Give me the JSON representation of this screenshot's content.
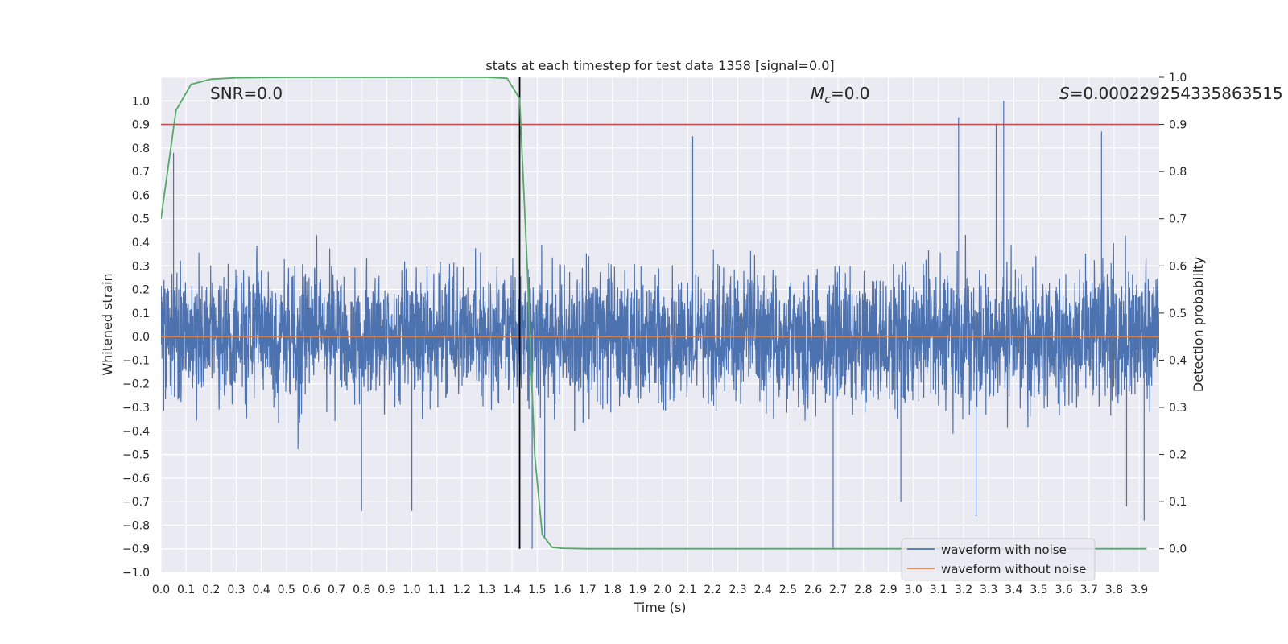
{
  "chart_data": {
    "type": "line",
    "title": "stats at each timestep for test data 1358 [signal=0.0]",
    "xlabel": "Time (s)",
    "ylabel": "Whitened strain",
    "y2label": "Detection probability",
    "xlim": [
      0.0,
      3.98
    ],
    "ylim": [
      -1.0,
      1.1
    ],
    "y2lim": [
      -0.05,
      1.0
    ],
    "x_ticks": [
      "0.0",
      "0.1",
      "0.2",
      "0.3",
      "0.4",
      "0.5",
      "0.6",
      "0.7",
      "0.8",
      "0.9",
      "1.0",
      "1.1",
      "1.2",
      "1.3",
      "1.4",
      "1.5",
      "1.6",
      "1.7",
      "1.8",
      "1.9",
      "2.0",
      "2.1",
      "2.2",
      "2.3",
      "2.4",
      "2.5",
      "2.6",
      "2.7",
      "2.8",
      "2.9",
      "3.0",
      "3.1",
      "3.2",
      "3.3",
      "3.4",
      "3.5",
      "3.6",
      "3.7",
      "3.8",
      "3.9"
    ],
    "y_ticks": [
      "1.0",
      "0.9",
      "0.8",
      "0.7",
      "0.6",
      "0.5",
      "0.4",
      "0.3",
      "0.2",
      "0.1",
      "0.0",
      "−0.1",
      "−0.2",
      "−0.3",
      "−0.4",
      "−0.5",
      "−0.6",
      "−0.7",
      "−0.8",
      "−0.9",
      "−1.0"
    ],
    "y2_ticks": [
      "1.0",
      "0.9",
      "0.8",
      "0.7",
      "0.6",
      "0.5",
      "0.4",
      "0.3",
      "0.2",
      "0.1",
      "0.0"
    ],
    "annotations": {
      "snr": "SNR=0.0",
      "mc_symbol": "M",
      "mc_sub": "c",
      "mc_value": "=0.0",
      "s_symbol": "S",
      "s_value": "=0.000229254335863515"
    },
    "threshold": 0.9,
    "detection_time": 1.43,
    "noise_seed": 1358,
    "noise_samples": 4000,
    "noise_spikes": [
      [
        0.05,
        0.78
      ],
      [
        2.12,
        0.85
      ],
      [
        3.18,
        0.93
      ],
      [
        3.33,
        0.9
      ],
      [
        3.36,
        1.0
      ],
      [
        3.75,
        0.87
      ],
      [
        2.68,
        -0.9
      ],
      [
        1.48,
        -0.9
      ],
      [
        1.53,
        -0.85
      ],
      [
        3.92,
        -0.78
      ],
      [
        0.8,
        -0.74
      ],
      [
        1.0,
        -0.74
      ],
      [
        3.25,
        -0.76
      ],
      [
        2.95,
        -0.7
      ],
      [
        3.85,
        -0.72
      ]
    ],
    "detection_probability": {
      "x": [
        0.0,
        0.06,
        0.12,
        0.2,
        0.3,
        0.5,
        1.0,
        1.3,
        1.38,
        1.43,
        1.46,
        1.49,
        1.52,
        1.56,
        1.6,
        1.7,
        2.0,
        3.0,
        3.93
      ],
      "y": [
        0.7,
        0.93,
        0.985,
        0.996,
        0.999,
        1.0,
        1.0,
        1.0,
        0.998,
        0.955,
        0.6,
        0.2,
        0.03,
        0.003,
        0.001,
        0.0,
        0.0,
        0.0,
        0.0
      ]
    },
    "series": [
      {
        "name": "waveform with noise",
        "color": "#4c72b0"
      },
      {
        "name": "waveform without noise",
        "color": "#dd8452"
      },
      {
        "name": "detection probability",
        "color": "#55a868"
      },
      {
        "name": "threshold",
        "color": "#c44e52"
      },
      {
        "name": "detection time",
        "color": "#000000"
      }
    ],
    "legend": {
      "placement": "lower-right",
      "entries": [
        "waveform with noise",
        "waveform without noise"
      ]
    },
    "background": "#eaeaf2",
    "grid_color": "#ffffff"
  }
}
